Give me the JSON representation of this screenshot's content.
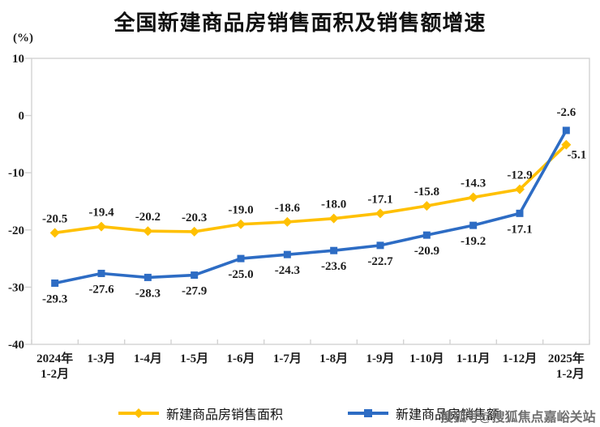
{
  "chart_data": {
    "type": "line",
    "title": "全国新建商品房销售面积及销售额增速",
    "unit_label": "(%)",
    "categories": [
      "2024年1-2月",
      "1-3月",
      "1-4月",
      "1-5月",
      "1-6月",
      "1-7月",
      "1-8月",
      "1-9月",
      "1-10月",
      "1-11月",
      "1-12月",
      "2025年1-2月"
    ],
    "series": [
      {
        "name": "新建商品房销售面积",
        "marker": "diamond",
        "color": "#FFC000",
        "values": [
          -20.5,
          -19.4,
          -20.2,
          -20.3,
          -19.0,
          -18.6,
          -18.0,
          -17.1,
          -15.8,
          -14.3,
          -12.9,
          -5.1
        ]
      },
      {
        "name": "新建商品房销售额",
        "visible_label": "新建商品",
        "marker": "square",
        "color": "#2D6CC4",
        "values": [
          -29.3,
          -27.6,
          -28.3,
          -27.9,
          -25.0,
          -24.3,
          -23.6,
          -22.7,
          -20.9,
          -19.2,
          -17.1,
          -2.6
        ]
      }
    ],
    "ylim": [
      -40,
      10
    ],
    "yticks": [
      10,
      0,
      -10,
      -20,
      -30,
      -40
    ],
    "grid": false,
    "data_labels": true,
    "legend_position": "bottom",
    "label_color": "#1c1c1c",
    "plot_border_color": "#d2d2d2"
  },
  "watermark": {
    "text": "搜狐号@搜狐焦点嘉峪关站",
    "color": "#6f6f6f"
  }
}
